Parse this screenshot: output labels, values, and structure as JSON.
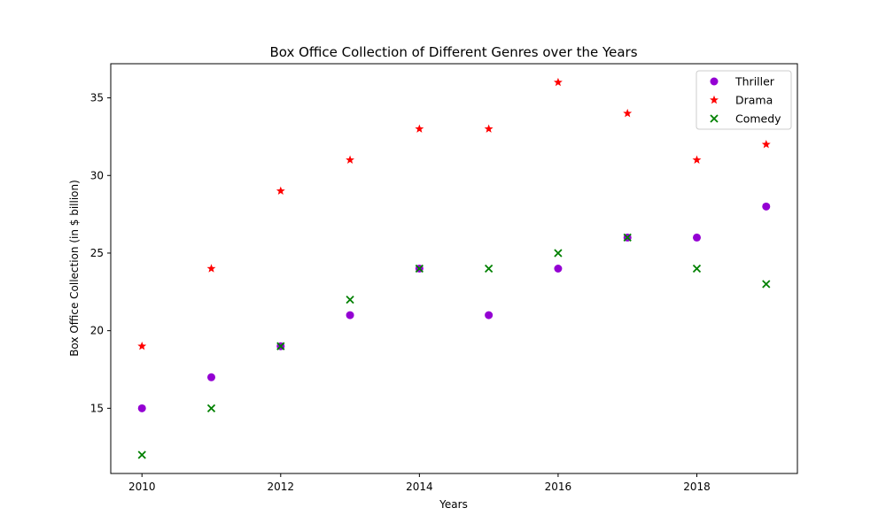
{
  "chart_data": {
    "type": "scatter",
    "title": "Box Office Collection of Different Genres over the Years",
    "xlabel": "Years",
    "ylabel": "Box Office Collection (in $ billion)",
    "xlim": [
      2009.55,
      2019.45
    ],
    "ylim": [
      10.8,
      37.2
    ],
    "x_ticks": [
      2010,
      2012,
      2014,
      2016,
      2018
    ],
    "y_ticks": [
      15,
      20,
      25,
      30,
      35
    ],
    "grid": false,
    "legend_position": "top-right",
    "x": [
      2010,
      2011,
      2012,
      2013,
      2014,
      2015,
      2016,
      2017,
      2018,
      2019
    ],
    "series": [
      {
        "name": "Thriller",
        "marker": "circle",
        "color": "#9400d3",
        "values": [
          15,
          17,
          19,
          21,
          24,
          21,
          24,
          26,
          26,
          28
        ]
      },
      {
        "name": "Drama",
        "marker": "star",
        "color": "#ff0000",
        "values": [
          19,
          24,
          29,
          31,
          33,
          33,
          36,
          34,
          31,
          32
        ]
      },
      {
        "name": "Comedy",
        "marker": "x",
        "color": "#008000",
        "values": [
          12,
          15,
          19,
          22,
          24,
          24,
          25,
          26,
          24,
          23
        ]
      }
    ]
  }
}
